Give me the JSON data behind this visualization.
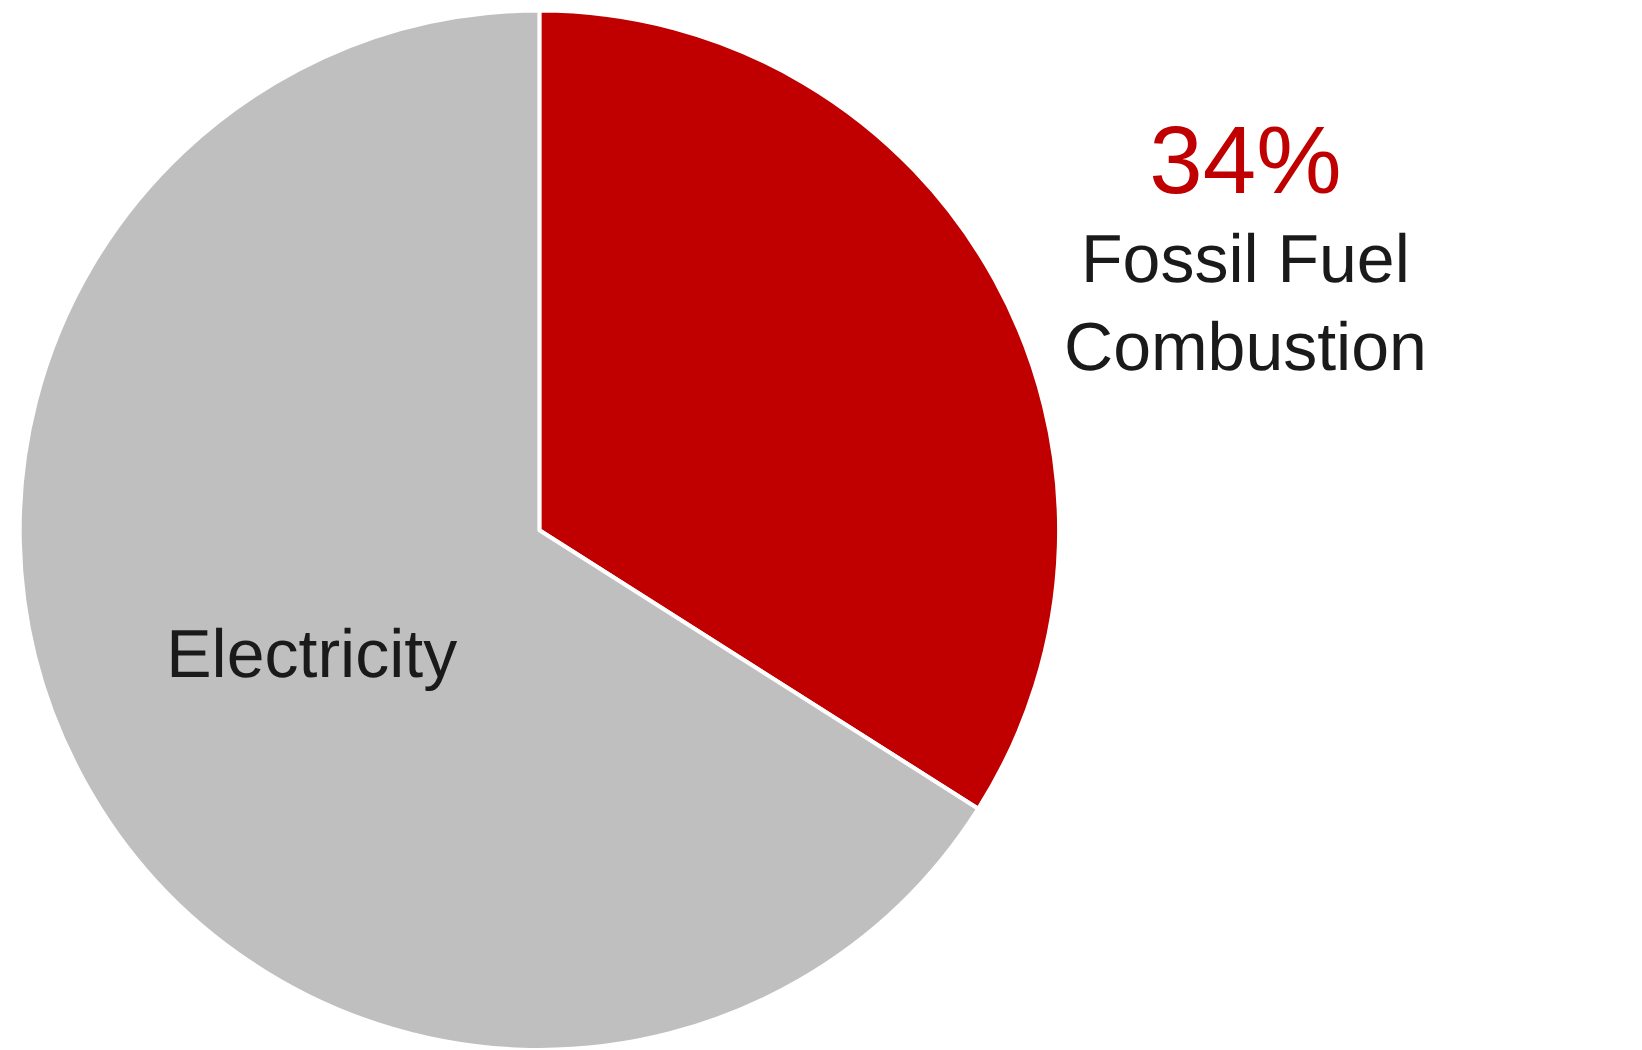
{
  "chart_data": {
    "type": "pie",
    "categories": [
      "Fossil Fuel Combustion",
      "Electricity"
    ],
    "values": [
      34,
      66
    ],
    "colors": [
      "#c00000",
      "#bfbfbf"
    ],
    "value_labels": [
      "34%",
      null
    ]
  }
}
